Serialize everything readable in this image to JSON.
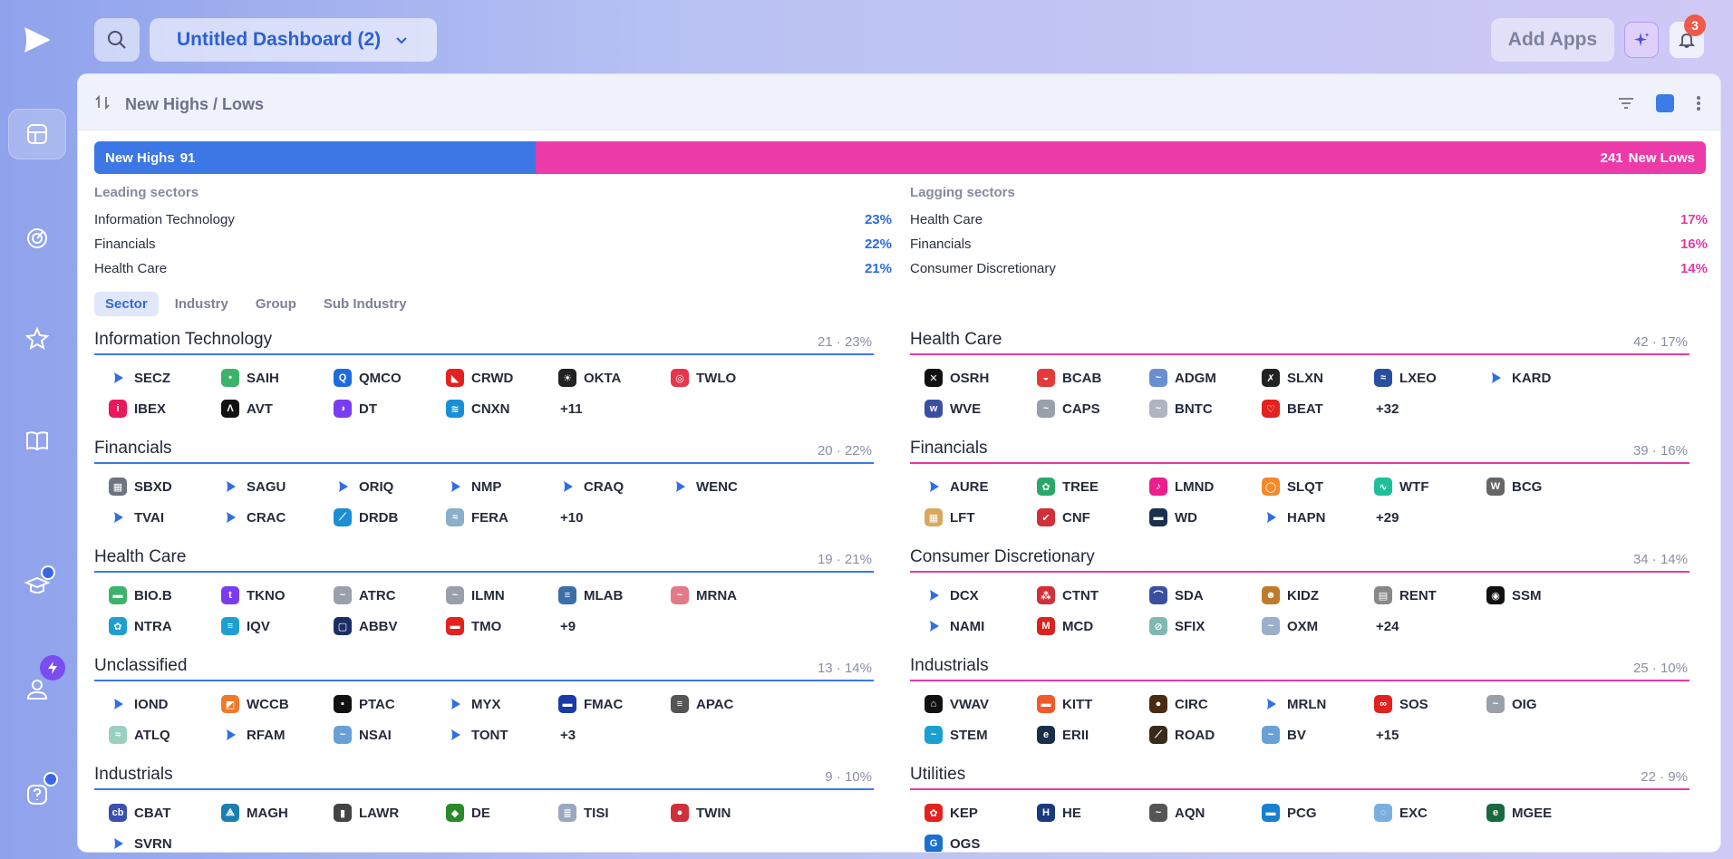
{
  "topbar": {
    "dashboard_title": "Untitled Dashboard (2)",
    "add_apps_label": "Add Apps",
    "notification_count": "3"
  },
  "widget": {
    "title": "New Highs / Lows",
    "accent_color": "#3d7be6",
    "new_highs_label": "New Highs",
    "new_highs_count": "91",
    "new_lows_label": "New Lows",
    "new_lows_count": "241",
    "highs_fraction": 0.274
  },
  "leading": {
    "title": "Leading sectors",
    "rows": [
      {
        "name": "Information Technology",
        "pct": "23%"
      },
      {
        "name": "Financials",
        "pct": "22%"
      },
      {
        "name": "Health Care",
        "pct": "21%"
      }
    ]
  },
  "lagging": {
    "title": "Lagging sectors",
    "rows": [
      {
        "name": "Health Care",
        "pct": "17%"
      },
      {
        "name": "Financials",
        "pct": "16%"
      },
      {
        "name": "Consumer Discretionary",
        "pct": "14%"
      }
    ]
  },
  "tabs": [
    "Sector",
    "Industry",
    "Group",
    "Sub Industry"
  ],
  "highs_groups": [
    {
      "name": "Information Technology",
      "stat": "21 · 23%",
      "more": "+11",
      "tickers": [
        [
          "SECZ",
          "play",
          "#2f6ee8"
        ],
        [
          "SAIH",
          "dot",
          "#3bb36b"
        ],
        [
          "QMCO",
          "Q",
          "#1e6be0"
        ],
        [
          "CRWD",
          "◣",
          "#e3221f"
        ],
        [
          "OKTA",
          "☀",
          "#222"
        ],
        [
          "TWLO",
          "◎",
          "#e8364a"
        ],
        [
          "IBEX",
          "i",
          "#e8185a"
        ],
        [
          "AVT",
          "Λ",
          "#111"
        ],
        [
          "DT",
          "◑",
          "#7a3cf0"
        ],
        [
          "CNXN",
          "≋",
          "#1a8fd6"
        ]
      ]
    },
    {
      "name": "Financials",
      "stat": "20 · 22%",
      "more": "+10",
      "tickers": [
        [
          "SBXD",
          "▦",
          "#6d7380"
        ],
        [
          "SAGU",
          "play",
          "#2f6ee8"
        ],
        [
          "ORIQ",
          "play",
          "#2f6ee8"
        ],
        [
          "NMP",
          "play",
          "#2f6ee8"
        ],
        [
          "CRAQ",
          "play",
          "#2f6ee8"
        ],
        [
          "WENC",
          "play",
          "#2f6ee8"
        ],
        [
          "TVAI",
          "play",
          "#2f6ee8"
        ],
        [
          "CRAC",
          "play",
          "#2f6ee8"
        ],
        [
          "DRDB",
          "⟋",
          "#1a8fd6"
        ],
        [
          "FERA",
          "≈",
          "#8ab0c8"
        ]
      ]
    },
    {
      "name": "Health Care",
      "stat": "19 · 21%",
      "more": "+9",
      "tickers": [
        [
          "BIO.B",
          "▬",
          "#3bb36b"
        ],
        [
          "TKNO",
          "t",
          "#7a3cf0"
        ],
        [
          "ATRC",
          "~",
          "#9aa0aa"
        ],
        [
          "ILMN",
          "~",
          "#9aa0aa"
        ],
        [
          "MLAB",
          "≡",
          "#3a6fa8"
        ],
        [
          "MRNA",
          "~",
          "#e37a8a"
        ],
        [
          "NTRA",
          "✿",
          "#1e9fd0"
        ],
        [
          "IQV",
          "≡",
          "#1e9fd0"
        ],
        [
          "ABBV",
          "▢",
          "#1a2f66"
        ],
        [
          "TMO",
          "▬",
          "#e3221f"
        ]
      ]
    },
    {
      "name": "Unclassified",
      "stat": "13 · 14%",
      "more": "+3",
      "tickers": [
        [
          "IOND",
          "play",
          "#2f6ee8"
        ],
        [
          "WCCB",
          "◩",
          "#f07a2a"
        ],
        [
          "PTAC",
          "▪",
          "#111"
        ],
        [
          "MYX",
          "play",
          "#2f6ee8"
        ],
        [
          "FMAC",
          "▬",
          "#1a3aa8"
        ],
        [
          "APAC",
          "≡",
          "#555"
        ],
        [
          "ATLQ",
          "≈",
          "#9ad0c0"
        ],
        [
          "RFAM",
          "play",
          "#2f6ee8"
        ],
        [
          "NSAI",
          "~",
          "#6aa0d8"
        ],
        [
          "TONT",
          "play",
          "#2f6ee8"
        ]
      ]
    },
    {
      "name": "Industrials",
      "stat": "9 · 10%",
      "more": "",
      "tickers": [
        [
          "CBAT",
          "cb",
          "#3a4fb0"
        ],
        [
          "MAGH",
          "⟁",
          "#1a7fb0"
        ],
        [
          "LAWR",
          "▮",
          "#444"
        ],
        [
          "DE",
          "◆",
          "#2a8a2a"
        ],
        [
          "TISI",
          "≣",
          "#9aa8c0"
        ],
        [
          "TWIN",
          "●",
          "#d0303a"
        ],
        [
          "SVRN",
          "play",
          "#2f6ee8"
        ]
      ]
    }
  ],
  "lows_groups": [
    {
      "name": "Health Care",
      "stat": "42 · 17%",
      "more": "+32",
      "tickers": [
        [
          "OSRH",
          "✕",
          "#111"
        ],
        [
          "BCAB",
          "◒",
          "#e33a3a"
        ],
        [
          "ADGM",
          "~",
          "#6a8fd0"
        ],
        [
          "SLXN",
          "✗",
          "#222"
        ],
        [
          "LXEO",
          "≈",
          "#2a4fa0"
        ],
        [
          "KARD",
          "play",
          "#2f6ee8"
        ],
        [
          "WVE",
          "w",
          "#3a4fa0"
        ],
        [
          "CAPS",
          "~",
          "#9aa0aa"
        ],
        [
          "BNTC",
          "~",
          "#b0b4c0"
        ],
        [
          "BEAT",
          "♡",
          "#e3221f"
        ]
      ]
    },
    {
      "name": "Financials",
      "stat": "39 · 16%",
      "more": "+29",
      "tickers": [
        [
          "AURE",
          "play",
          "#2f6ee8"
        ],
        [
          "TREE",
          "✿",
          "#2aa86a"
        ],
        [
          "LMND",
          "♪",
          "#ea1f8c"
        ],
        [
          "SLQT",
          "◯",
          "#f08a2a"
        ],
        [
          "WTF",
          "∿",
          "#1fbf9a"
        ],
        [
          "BCG",
          "W",
          "#666"
        ],
        [
          "LFT",
          "▦",
          "#d8a860"
        ],
        [
          "CNF",
          "✔",
          "#d0303a"
        ],
        [
          "WD",
          "▬",
          "#1a3050"
        ],
        [
          "HAPN",
          "play",
          "#2f6ee8"
        ]
      ]
    },
    {
      "name": "Consumer Discretionary",
      "stat": "34 · 14%",
      "more": "+24",
      "tickers": [
        [
          "DCX",
          "play",
          "#2f6ee8"
        ],
        [
          "CTNT",
          "⁂",
          "#d0303a"
        ],
        [
          "SDA",
          "⌒",
          "#3a4fa0"
        ],
        [
          "KIDZ",
          "☻",
          "#c07a2a"
        ],
        [
          "RENT",
          "▤",
          "#888"
        ],
        [
          "SSM",
          "◉",
          "#111"
        ],
        [
          "NAMI",
          "play",
          "#2f6ee8"
        ],
        [
          "MCD",
          "M",
          "#d8231f"
        ],
        [
          "SFIX",
          "⊘",
          "#7fb8b0"
        ],
        [
          "OXM",
          "~",
          "#9ab0c8"
        ]
      ]
    },
    {
      "name": "Industrials",
      "stat": "25 · 10%",
      "more": "+15",
      "tickers": [
        [
          "VWAV",
          "⌂",
          "#111"
        ],
        [
          "KITT",
          "▬",
          "#f05a2a"
        ],
        [
          "CIRC",
          "●",
          "#4a2a10"
        ],
        [
          "MRLN",
          "play",
          "#2f6ee8"
        ],
        [
          "SOS",
          "∞",
          "#e3221f"
        ],
        [
          "OIG",
          "~",
          "#9aa0aa"
        ],
        [
          "STEM",
          "~",
          "#1a9fd0"
        ],
        [
          "ERII",
          "e",
          "#1a2f4a"
        ],
        [
          "ROAD",
          "⟋",
          "#3a2a1a"
        ],
        [
          "BV",
          "~",
          "#6aa0d8"
        ]
      ]
    },
    {
      "name": "Utilities",
      "stat": "22 · 9%",
      "more": "",
      "tickers": [
        [
          "KEP",
          "✿",
          "#e3221f"
        ],
        [
          "HE",
          "H",
          "#1a3a80"
        ],
        [
          "AQN",
          "~",
          "#555"
        ],
        [
          "PCG",
          "▬",
          "#1a7fd0"
        ],
        [
          "EXC",
          "◌",
          "#7ab0e0"
        ],
        [
          "MGEE",
          "e",
          "#1a6a40"
        ],
        [
          "OGS",
          "G",
          "#1a6fd0"
        ]
      ]
    }
  ]
}
